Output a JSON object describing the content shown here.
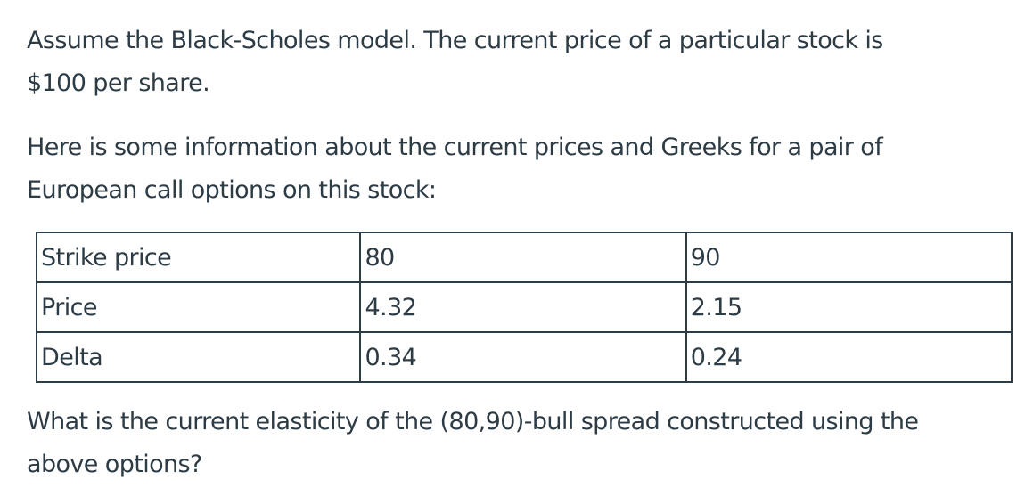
{
  "intro": {
    "line1": "Assume the Black-Scholes model. The current price of a particular stock is",
    "line2": "$100 per share."
  },
  "info": {
    "line1": "Here is some information about the current prices and Greeks for a pair of",
    "line2": "European call options on this stock:"
  },
  "table": {
    "rows": [
      {
        "label": "Strike price",
        "v1": "80",
        "v2": "90"
      },
      {
        "label": "Price",
        "v1": "4.32",
        "v2": "2.15"
      },
      {
        "label": "Delta",
        "v1": "0.34",
        "v2": "0.24"
      }
    ]
  },
  "question": {
    "line1": "What is the current elasticity of the (80,90)-bull spread constructed using the",
    "line2": "above options?"
  }
}
